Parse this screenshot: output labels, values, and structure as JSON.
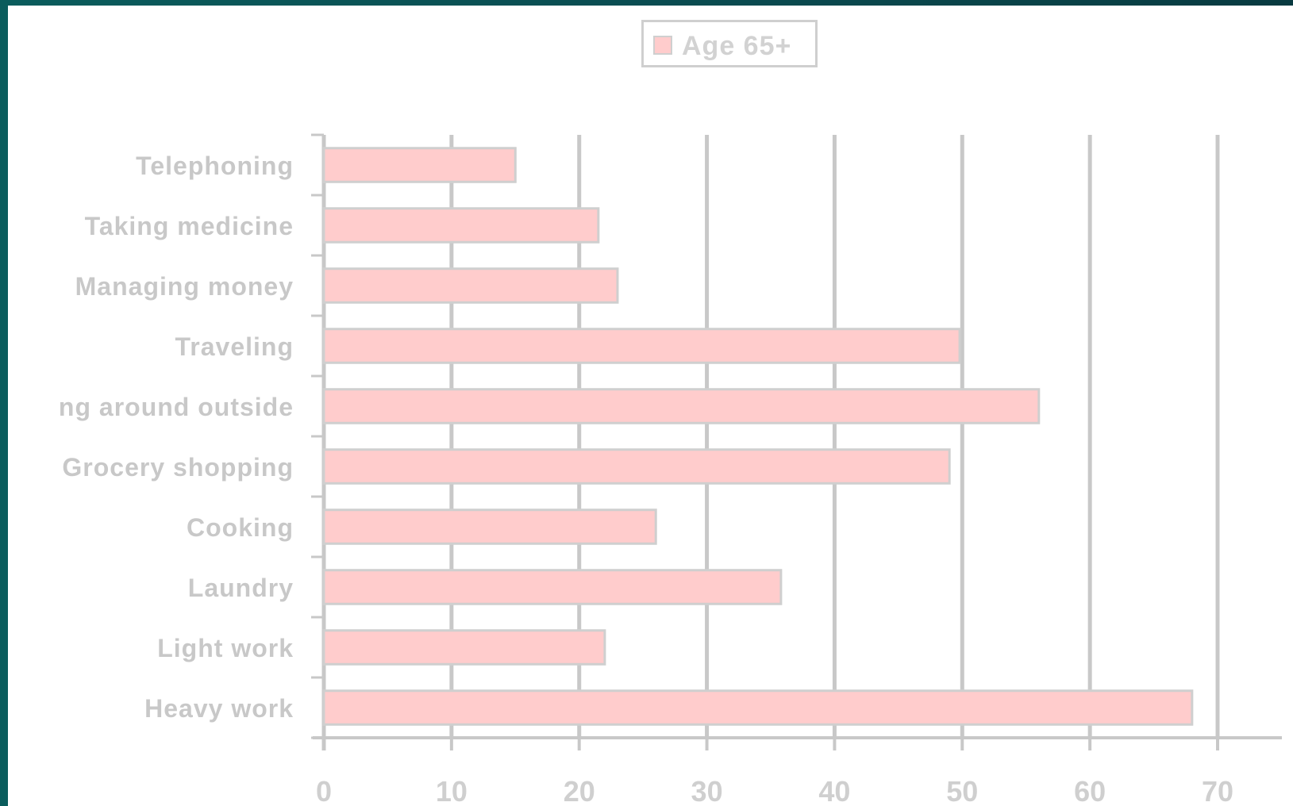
{
  "chart_data": {
    "type": "bar",
    "orientation": "horizontal",
    "categories": [
      "Telephoning",
      "Taking medicine",
      "Managing money",
      "Traveling",
      "ng around outside",
      "Grocery shopping",
      "Cooking",
      "Laundry",
      "Light work",
      "Heavy work"
    ],
    "series": [
      {
        "name": "Age 65+",
        "values": [
          15,
          21.5,
          23,
          49.8,
          56,
          49,
          26,
          35.8,
          22,
          68
        ],
        "color": "#ffcccc"
      }
    ],
    "xlim": [
      0,
      70
    ],
    "xticks": [
      0,
      10,
      20,
      30,
      40,
      50,
      60,
      70
    ],
    "grid": "vertical",
    "legend": "top"
  },
  "colors": {
    "bar_fill": "#ffcccc",
    "bar_stroke": "#cfcfcf",
    "axis": "#c8c8c8",
    "gridline": "#c8c8c8",
    "background_frame": "#0a5c5c"
  }
}
